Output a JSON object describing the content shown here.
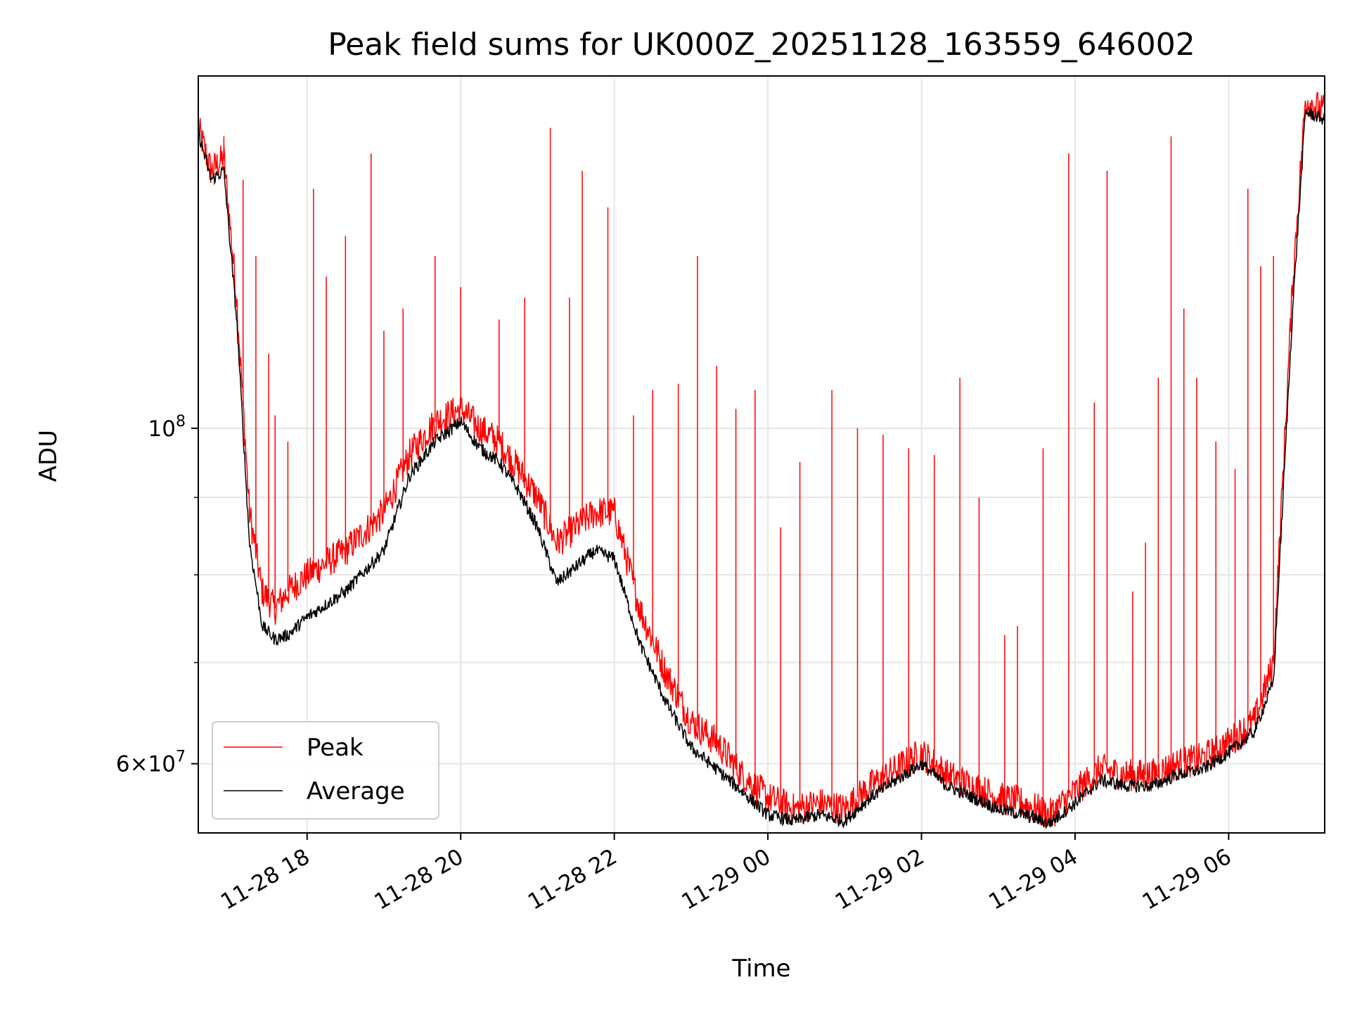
{
  "chart_data": {
    "type": "line",
    "title": "Peak field sums for UK000Z_20251128_163559_646002",
    "xlabel": "Time",
    "ylabel": "ADU",
    "y_scale": "log",
    "grid": true,
    "legend_position": "lower-left",
    "xlim": [
      "2025-11-28 16:35",
      "2025-11-29 07:15"
    ],
    "ylim": [
      54000000,
      171000000
    ],
    "x_ticks": [
      {
        "value": "2025-11-28 18:00",
        "label": "11-28 18"
      },
      {
        "value": "2025-11-28 20:00",
        "label": "11-28 20"
      },
      {
        "value": "2025-11-28 22:00",
        "label": "11-28 22"
      },
      {
        "value": "2025-11-29 00:00",
        "label": "11-29 00"
      },
      {
        "value": "2025-11-29 02:00",
        "label": "11-29 02"
      },
      {
        "value": "2025-11-29 04:00",
        "label": "11-29 04"
      },
      {
        "value": "2025-11-29 06:00",
        "label": "11-29 06"
      }
    ],
    "y_ticks": [
      {
        "value": 100000000,
        "mantissa": "",
        "base": "10",
        "exp": "8"
      },
      {
        "value": 60000000,
        "mantissa": "6×",
        "base": "10",
        "exp": "7"
      }
    ],
    "y_minor_grid": [
      70000000,
      80000000,
      90000000
    ],
    "series": [
      {
        "name": "Peak",
        "color": "#ff0000",
        "x": [
          "2025-11-28 16:35",
          "2025-11-28 16:45",
          "2025-11-28 16:55",
          "2025-11-28 17:05",
          "2025-11-28 17:15",
          "2025-11-28 17:25",
          "2025-11-28 17:35",
          "2025-11-28 17:45",
          "2025-11-28 18:00",
          "2025-11-28 18:30",
          "2025-11-28 19:00",
          "2025-11-28 19:20",
          "2025-11-28 19:40",
          "2025-11-28 20:00",
          "2025-11-28 20:15",
          "2025-11-28 20:30",
          "2025-11-28 20:45",
          "2025-11-28 21:00",
          "2025-11-28 21:15",
          "2025-11-28 21:30",
          "2025-11-28 21:45",
          "2025-11-28 22:00",
          "2025-11-28 22:20",
          "2025-11-28 22:40",
          "2025-11-28 23:00",
          "2025-11-28 23:20",
          "2025-11-28 23:40",
          "2025-11-29 00:00",
          "2025-11-29 00:20",
          "2025-11-29 00:40",
          "2025-11-29 01:00",
          "2025-11-29 01:20",
          "2025-11-29 01:40",
          "2025-11-29 02:00",
          "2025-11-29 02:20",
          "2025-11-29 02:40",
          "2025-11-29 03:00",
          "2025-11-29 03:20",
          "2025-11-29 03:40",
          "2025-11-29 04:00",
          "2025-11-29 04:20",
          "2025-11-29 04:40",
          "2025-11-29 05:00",
          "2025-11-29 05:20",
          "2025-11-29 05:40",
          "2025-11-29 06:00",
          "2025-11-29 06:20",
          "2025-11-29 06:35",
          "2025-11-29 06:50",
          "2025-11-29 07:00",
          "2025-11-29 07:15"
        ],
        "y": [
          158000000,
          148000000,
          151000000,
          122000000,
          88000000,
          78000000,
          76000000,
          78000000,
          80000000,
          83000000,
          88000000,
          96000000,
          101000000,
          103000000,
          100000000,
          98000000,
          94000000,
          90000000,
          84000000,
          86000000,
          88000000,
          88000000,
          76000000,
          69000000,
          64000000,
          62000000,
          59000000,
          57000000,
          56000000,
          56500000,
          56000000,
          58000000,
          59500000,
          61000000,
          59000000,
          58000000,
          57000000,
          56500000,
          55500000,
          57500000,
          59500000,
          59000000,
          59000000,
          60000000,
          60500000,
          62000000,
          64000000,
          70000000,
          125000000,
          165000000,
          162000000
        ],
        "spikes": [
          [
            "2025-11-28 16:55",
            156000000
          ],
          [
            "2025-11-28 17:10",
            146000000
          ],
          [
            "2025-11-28 17:20",
            130000000
          ],
          [
            "2025-11-28 17:30",
            112000000
          ],
          [
            "2025-11-28 17:35",
            102000000
          ],
          [
            "2025-11-28 17:45",
            98000000
          ],
          [
            "2025-11-28 18:05",
            144000000
          ],
          [
            "2025-11-28 18:15",
            126000000
          ],
          [
            "2025-11-28 18:30",
            134000000
          ],
          [
            "2025-11-28 18:50",
            152000000
          ],
          [
            "2025-11-28 19:00",
            116000000
          ],
          [
            "2025-11-28 19:15",
            120000000
          ],
          [
            "2025-11-28 19:40",
            130000000
          ],
          [
            "2025-11-28 20:00",
            124000000
          ],
          [
            "2025-11-28 20:30",
            118000000
          ],
          [
            "2025-11-28 20:50",
            122000000
          ],
          [
            "2025-11-28 21:10",
            158000000
          ],
          [
            "2025-11-28 21:25",
            122000000
          ],
          [
            "2025-11-28 21:35",
            148000000
          ],
          [
            "2025-11-28 21:55",
            140000000
          ],
          [
            "2025-11-28 22:15",
            102000000
          ],
          [
            "2025-11-28 22:30",
            106000000
          ],
          [
            "2025-11-28 22:50",
            107000000
          ],
          [
            "2025-11-28 23:05",
            130000000
          ],
          [
            "2025-11-28 23:20",
            110000000
          ],
          [
            "2025-11-28 23:35",
            103000000
          ],
          [
            "2025-11-28 23:50",
            106000000
          ],
          [
            "2025-11-29 00:10",
            86000000
          ],
          [
            "2025-11-29 00:25",
            95000000
          ],
          [
            "2025-11-29 00:50",
            106000000
          ],
          [
            "2025-11-29 01:10",
            100000000
          ],
          [
            "2025-11-29 01:30",
            99000000
          ],
          [
            "2025-11-29 01:50",
            97000000
          ],
          [
            "2025-11-29 02:10",
            96000000
          ],
          [
            "2025-11-29 02:30",
            108000000
          ],
          [
            "2025-11-29 02:45",
            90000000
          ],
          [
            "2025-11-29 03:05",
            73000000
          ],
          [
            "2025-11-29 03:15",
            74000000
          ],
          [
            "2025-11-29 03:35",
            97000000
          ],
          [
            "2025-11-29 03:55",
            152000000
          ],
          [
            "2025-11-29 04:15",
            104000000
          ],
          [
            "2025-11-29 04:25",
            148000000
          ],
          [
            "2025-11-29 04:45",
            78000000
          ],
          [
            "2025-11-29 04:55",
            84000000
          ],
          [
            "2025-11-29 05:05",
            108000000
          ],
          [
            "2025-11-29 05:15",
            156000000
          ],
          [
            "2025-11-29 05:25",
            120000000
          ],
          [
            "2025-11-29 05:35",
            108000000
          ],
          [
            "2025-11-29 05:50",
            98000000
          ],
          [
            "2025-11-29 06:05",
            94000000
          ],
          [
            "2025-11-29 06:15",
            144000000
          ],
          [
            "2025-11-29 06:25",
            128000000
          ],
          [
            "2025-11-29 06:35",
            130000000
          ]
        ]
      },
      {
        "name": "Average",
        "color": "#000000",
        "x": [
          "2025-11-28 16:35",
          "2025-11-28 16:45",
          "2025-11-28 16:55",
          "2025-11-28 17:05",
          "2025-11-28 17:15",
          "2025-11-28 17:25",
          "2025-11-28 17:35",
          "2025-11-28 17:45",
          "2025-11-28 18:00",
          "2025-11-28 18:30",
          "2025-11-28 19:00",
          "2025-11-28 19:20",
          "2025-11-28 19:40",
          "2025-11-28 20:00",
          "2025-11-28 20:15",
          "2025-11-28 20:30",
          "2025-11-28 20:45",
          "2025-11-28 21:00",
          "2025-11-28 21:15",
          "2025-11-28 21:30",
          "2025-11-28 21:45",
          "2025-11-28 22:00",
          "2025-11-28 22:20",
          "2025-11-28 22:40",
          "2025-11-28 23:00",
          "2025-11-28 23:20",
          "2025-11-28 23:40",
          "2025-11-29 00:00",
          "2025-11-29 00:20",
          "2025-11-29 00:40",
          "2025-11-29 01:00",
          "2025-11-29 01:20",
          "2025-11-29 01:40",
          "2025-11-29 02:00",
          "2025-11-29 02:20",
          "2025-11-29 02:40",
          "2025-11-29 03:00",
          "2025-11-29 03:20",
          "2025-11-29 03:40",
          "2025-11-29 04:00",
          "2025-11-29 04:20",
          "2025-11-29 04:40",
          "2025-11-29 05:00",
          "2025-11-29 05:20",
          "2025-11-29 05:40",
          "2025-11-29 06:00",
          "2025-11-29 06:20",
          "2025-11-29 06:35",
          "2025-11-29 06:50",
          "2025-11-29 07:00",
          "2025-11-29 07:15"
        ],
        "y": [
          157000000,
          146000000,
          148000000,
          118000000,
          84000000,
          74000000,
          72500000,
          73000000,
          75000000,
          78000000,
          83000000,
          93000000,
          98000000,
          101000000,
          97000000,
          95000000,
          91000000,
          86000000,
          79000000,
          81000000,
          83000000,
          82000000,
          72000000,
          66000000,
          61500000,
          59500000,
          57500000,
          55500000,
          55000000,
          55500000,
          55000000,
          57000000,
          58500000,
          60000000,
          58000000,
          57000000,
          56000000,
          55500000,
          54800000,
          56500000,
          58500000,
          58000000,
          58000000,
          59000000,
          59500000,
          61000000,
          63000000,
          68000000,
          120000000,
          162000000,
          160000000
        ]
      }
    ]
  }
}
